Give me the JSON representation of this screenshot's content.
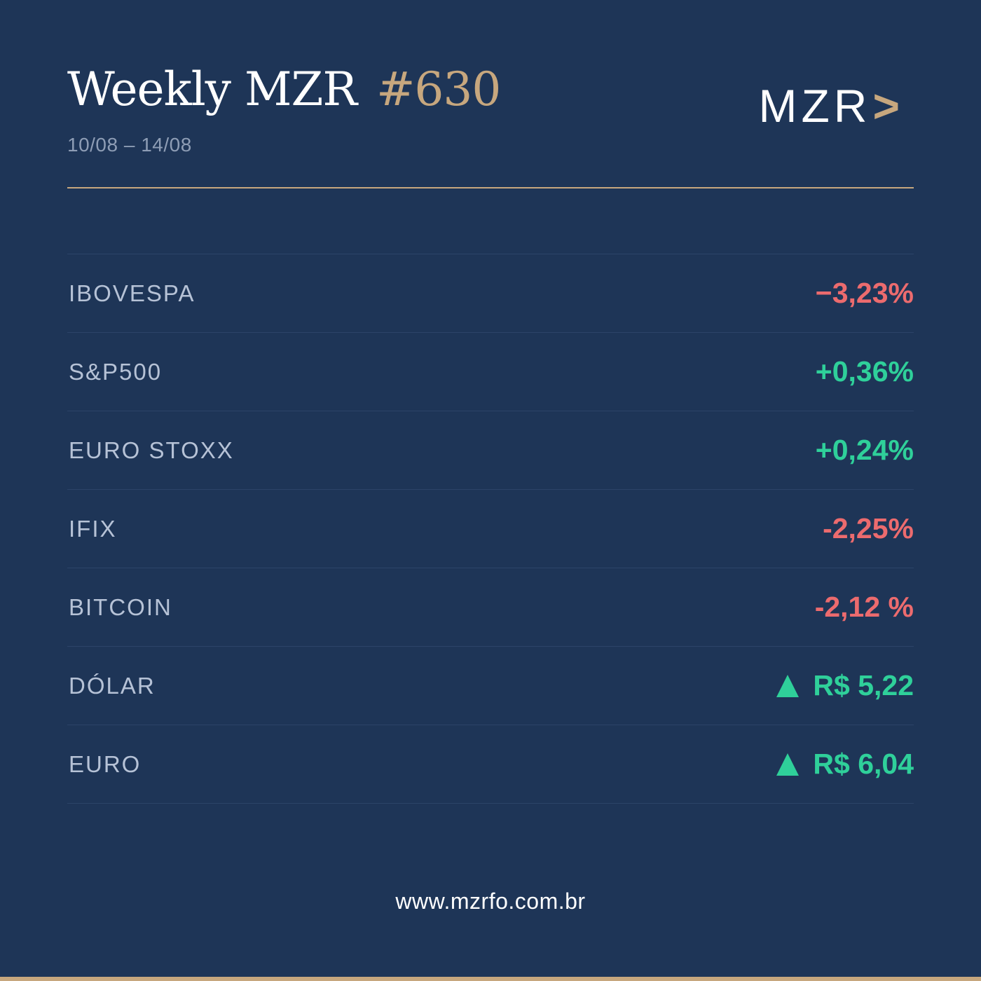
{
  "header": {
    "title": "Weekly MZR",
    "issue": "#630",
    "date_range": "10/08 – 14/08",
    "logo_text": "MZR",
    "logo_chevron": ">"
  },
  "colors": {
    "background": "#1e3557",
    "accent_gold": "#c7a77e",
    "negative": "#ec6b6e",
    "positive": "#2fd09a"
  },
  "indices": [
    {
      "label": "IBOVESPA",
      "value": "−3,23%",
      "direction": "down"
    },
    {
      "label": "S&P500",
      "value": "+0,36%",
      "direction": "up"
    },
    {
      "label": "EURO STOXX",
      "value": "+0,24%",
      "direction": "up"
    },
    {
      "label": "IFIX",
      "value": "-2,25%",
      "direction": "down"
    },
    {
      "label": "BITCOIN",
      "value": "-2,12 %",
      "direction": "down"
    },
    {
      "label": "DÓLAR",
      "value": "R$ 5,22",
      "direction": "up",
      "icon": "triangle-up-icon"
    },
    {
      "label": "EURO",
      "value": "R$ 6,04",
      "direction": "up",
      "icon": "triangle-up-icon"
    }
  ],
  "footer": {
    "website": "www.mzrfo.com.br"
  }
}
